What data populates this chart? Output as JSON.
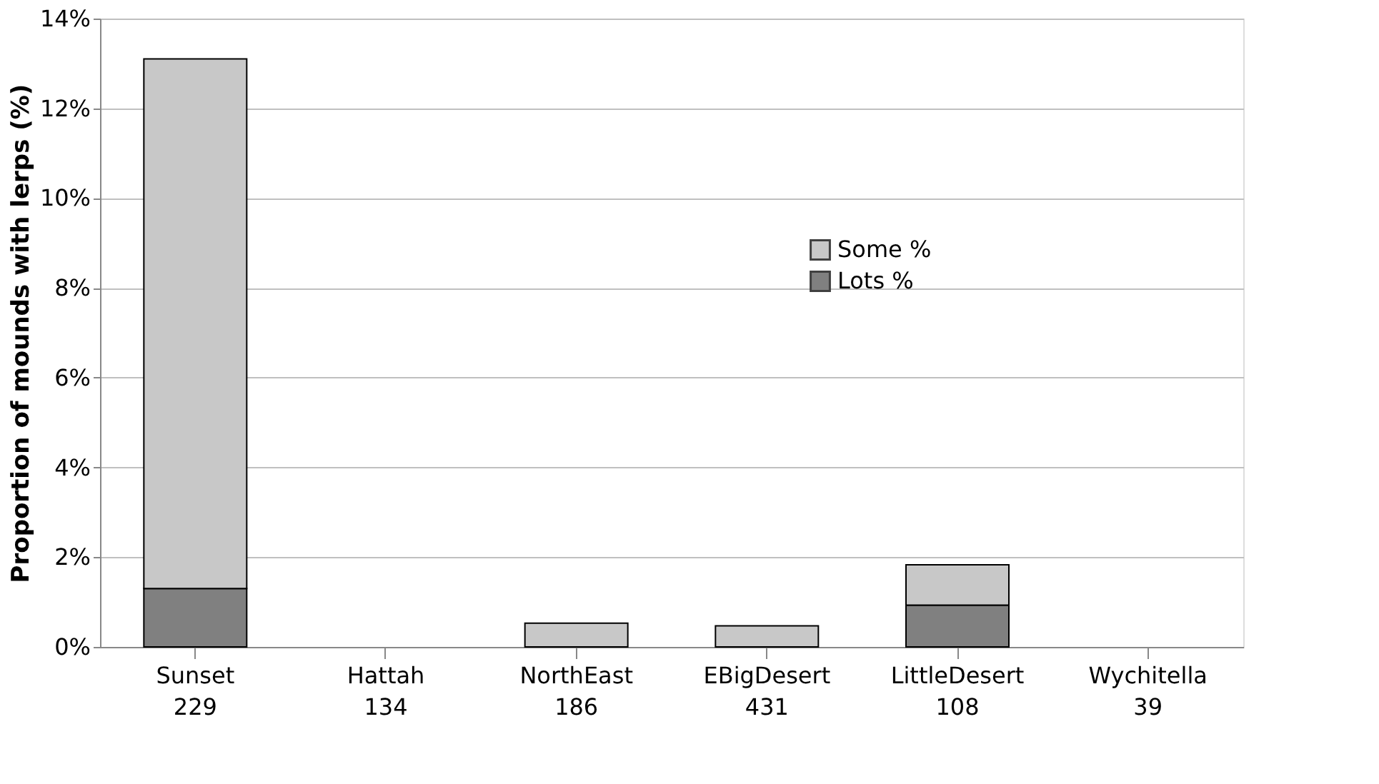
{
  "chart_data": {
    "type": "bar",
    "stacked": true,
    "ylabel": "Proportion of mounds with lerps (%)",
    "categories": [
      "Sunset\n229",
      "Hattah\n134",
      "NorthEast\n186",
      "EBigDesert\n431",
      "LittleDesert\n108",
      "Wychitella\n39"
    ],
    "series": [
      {
        "name": "Lots %",
        "color": "#808080",
        "values": [
          1.3,
          0,
          0,
          0,
          0.93,
          0
        ]
      },
      {
        "name": "Some %",
        "color": "#c8c8c8",
        "values": [
          11.8,
          0,
          0.53,
          0.47,
          0.9,
          0
        ]
      }
    ],
    "ylim": [
      0,
      14
    ],
    "yticks": [
      {
        "value": 0,
        "label": "0%"
      },
      {
        "value": 2,
        "label": "2%"
      },
      {
        "value": 4,
        "label": "4%"
      },
      {
        "value": 6,
        "label": "6%"
      },
      {
        "value": 8,
        "label": "8%"
      },
      {
        "value": 10,
        "label": "10%"
      },
      {
        "value": 12,
        "label": "12%"
      },
      {
        "value": 14,
        "label": "14%"
      }
    ],
    "grid": "y",
    "legend": "right"
  }
}
